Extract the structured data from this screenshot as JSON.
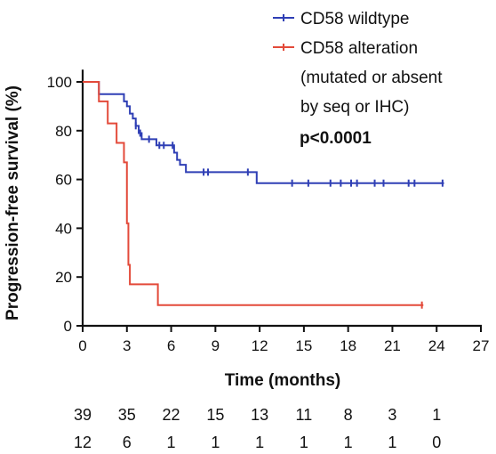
{
  "chart_data": {
    "type": "line",
    "subtype": "kaplan-meier",
    "title": "",
    "xlabel": "Time (months)",
    "ylabel": "Progression-free survival (%)",
    "xlim": [
      0,
      27
    ],
    "ylim": [
      0,
      105
    ],
    "xticks": [
      0,
      3,
      6,
      9,
      12,
      15,
      18,
      21,
      24,
      27
    ],
    "yticks": [
      0,
      20,
      40,
      60,
      80,
      100
    ],
    "grid": false,
    "legend_position": "top-right",
    "annotation": "p<0.0001",
    "series": [
      {
        "name": "CD58 wildtype",
        "color": "#2f3fb5",
        "steps": [
          [
            0,
            100
          ],
          [
            0.9,
            100
          ],
          [
            1.1,
            95
          ],
          [
            2.5,
            95
          ],
          [
            2.8,
            92
          ],
          [
            3.0,
            90
          ],
          [
            3.2,
            87
          ],
          [
            3.4,
            85
          ],
          [
            3.6,
            82
          ],
          [
            3.8,
            79
          ],
          [
            4.0,
            76.5
          ],
          [
            4.8,
            76.5
          ],
          [
            5.0,
            74
          ],
          [
            6.0,
            74
          ],
          [
            6.2,
            71
          ],
          [
            6.4,
            68
          ],
          [
            6.6,
            66
          ],
          [
            7.0,
            63
          ],
          [
            11.6,
            63
          ],
          [
            11.8,
            58.5
          ],
          [
            24.5,
            58.5
          ]
        ],
        "censors": [
          [
            3.6,
            82
          ],
          [
            3.9,
            79
          ],
          [
            4.5,
            76.5
          ],
          [
            5.2,
            74
          ],
          [
            5.5,
            74
          ],
          [
            6.1,
            74
          ],
          [
            8.2,
            63
          ],
          [
            8.5,
            63
          ],
          [
            11.2,
            63
          ],
          [
            14.2,
            58.5
          ],
          [
            15.3,
            58.5
          ],
          [
            16.8,
            58.5
          ],
          [
            17.5,
            58.5
          ],
          [
            18.2,
            58.5
          ],
          [
            18.6,
            58.5
          ],
          [
            19.8,
            58.5
          ],
          [
            20.4,
            58.5
          ],
          [
            22.1,
            58.5
          ],
          [
            22.5,
            58.5
          ],
          [
            24.4,
            58.5
          ]
        ]
      },
      {
        "name": "CD58 alteration (mutated or absent by seq or IHC)",
        "color": "#e34a3a",
        "steps": [
          [
            0,
            100
          ],
          [
            0.9,
            100
          ],
          [
            1.1,
            92
          ],
          [
            1.5,
            92
          ],
          [
            1.7,
            83
          ],
          [
            2.1,
            83
          ],
          [
            2.3,
            75
          ],
          [
            2.6,
            75
          ],
          [
            2.8,
            67
          ],
          [
            3.0,
            42
          ],
          [
            3.1,
            25
          ],
          [
            3.2,
            17
          ],
          [
            5.0,
            17
          ],
          [
            5.1,
            8.5
          ],
          [
            23.1,
            8.5
          ]
        ],
        "censors": [
          [
            23.0,
            8.5
          ]
        ]
      }
    ],
    "legend": [
      {
        "lines": [
          "CD58 wildtype"
        ],
        "color": "#2f3fb5"
      },
      {
        "lines": [
          "CD58 alteration",
          "(mutated or absent",
          "by seq or IHC)"
        ],
        "color": "#e34a3a"
      }
    ],
    "number_at_risk": [
      {
        "values": [
          "39",
          "35",
          "22",
          "15",
          "13",
          "11",
          "8",
          "3",
          "1"
        ]
      },
      {
        "values": [
          "12",
          "6",
          "1",
          "1",
          "1",
          "1",
          "1",
          "1",
          "0"
        ]
      }
    ]
  }
}
